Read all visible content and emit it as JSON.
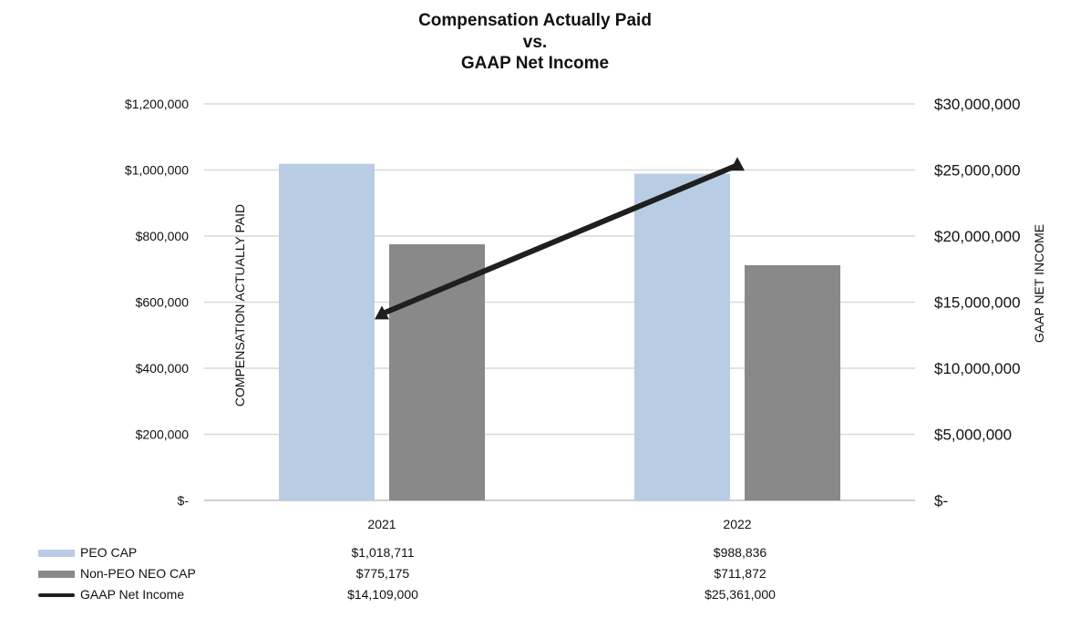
{
  "chart_data": {
    "type": "bar",
    "title_lines": [
      "Compensation Actually Paid",
      "vs.",
      "GAAP Net Income"
    ],
    "categories": [
      "2021",
      "2022"
    ],
    "ylabel": "COMPENSATION ACTUALLY PAID",
    "y2label": "GAAP NET INCOME",
    "ylim": [
      0,
      1200000
    ],
    "y2lim": [
      0,
      30000000
    ],
    "y_ticks": [
      0,
      200000,
      400000,
      600000,
      800000,
      1000000,
      1200000
    ],
    "y_tick_labels": [
      "$-",
      "$200,000",
      "$400,000",
      "$600,000",
      "$800,000",
      "$1,000,000",
      "$1,200,000"
    ],
    "y2_ticks": [
      0,
      5000000,
      10000000,
      15000000,
      20000000,
      25000000,
      30000000
    ],
    "y2_tick_labels": [
      "$-",
      "$5,000,000",
      "$10,000,000",
      "$15,000,000",
      "$20,000,000",
      "$25,000,000",
      "$30,000,000"
    ],
    "grid": true,
    "series": [
      {
        "name": "PEO CAP",
        "kind": "bar",
        "axis": "left",
        "color": "#b8cce4",
        "values": [
          1018711,
          988836
        ],
        "value_labels": [
          "$1,018,711",
          "$988,836"
        ]
      },
      {
        "name": "Non-PEO NEO CAP",
        "kind": "bar",
        "axis": "left",
        "color": "#898989",
        "values": [
          775175,
          711872
        ],
        "value_labels": [
          "$775,175",
          "$711,872"
        ]
      },
      {
        "name": "GAAP Net Income",
        "kind": "line",
        "axis": "right",
        "color": "#1f1f1f",
        "values": [
          14109000,
          25361000
        ],
        "value_labels": [
          "$14,109,000",
          "$25,361,000"
        ]
      }
    ],
    "legend_position": "bottom-table"
  }
}
